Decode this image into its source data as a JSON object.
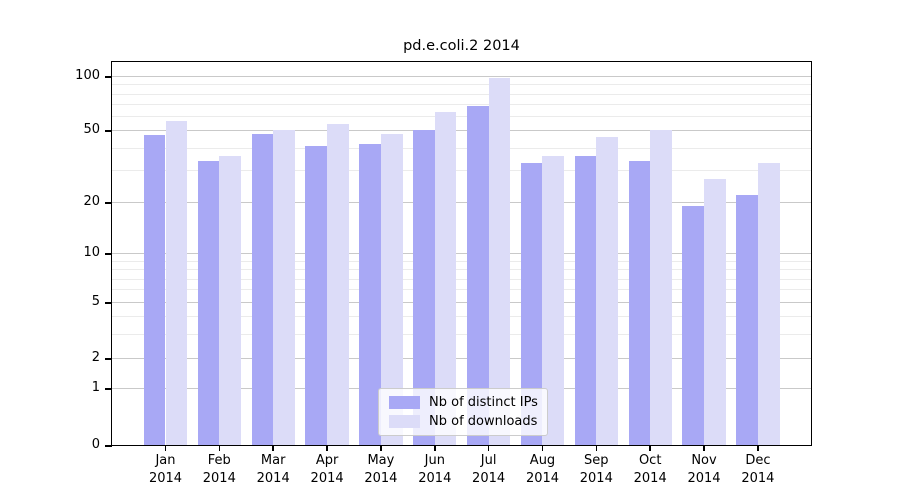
{
  "title": "pd.e.coli.2 2014",
  "chart_data": {
    "type": "bar",
    "title": "pd.e.coli.2 2014",
    "categories": [
      "Jan 2014",
      "Feb 2014",
      "Mar 2014",
      "Apr 2014",
      "May 2014",
      "Jun 2014",
      "Jul 2014",
      "Aug 2014",
      "Sep 2014",
      "Oct 2014",
      "Nov 2014",
      "Dec 2014"
    ],
    "categories_line1": [
      "Jan",
      "Feb",
      "Mar",
      "Apr",
      "May",
      "Jun",
      "Jul",
      "Aug",
      "Sep",
      "Oct",
      "Nov",
      "Dec"
    ],
    "categories_line2": [
      "2014",
      "2014",
      "2014",
      "2014",
      "2014",
      "2014",
      "2014",
      "2014",
      "2014",
      "2014",
      "2014",
      "2014"
    ],
    "series": [
      {
        "name": "Nb of distinct IPs",
        "color": "#a8a8f5",
        "values": [
          47,
          34,
          48,
          41,
          42,
          50,
          68,
          33,
          36,
          34,
          19,
          22
        ]
      },
      {
        "name": "Nb of downloads",
        "color": "#dcdcf8",
        "values": [
          56,
          36,
          50,
          54,
          48,
          63,
          98,
          36,
          46,
          50,
          27,
          33
        ]
      }
    ],
    "xlabel": "",
    "ylabel": "",
    "yscale": "log-like with 0 baseline",
    "y_tick_labels": [
      "100",
      "50",
      "20",
      "10",
      "5",
      "2",
      "1",
      "0"
    ],
    "y_major_ticks": [
      100,
      50,
      20,
      10,
      5,
      2,
      1,
      0
    ],
    "y_minor_ticks": [
      3,
      4,
      6,
      7,
      8,
      9,
      30,
      40,
      60,
      70,
      80,
      90
    ],
    "ylim": [
      0,
      110
    ],
    "grid": true,
    "legend_position": "lower center"
  }
}
